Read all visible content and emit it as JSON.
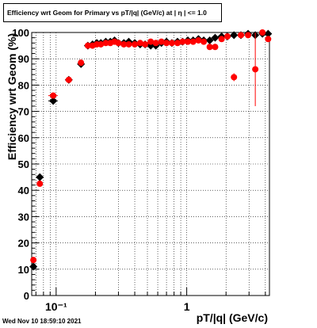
{
  "title": "Efficiency wrt Geom for Primary vs pT/|q| (GeV/c) at |  η | <= 1.0",
  "footer": {
    "datestamp": "Wed Nov 10 18:59:10 2021"
  },
  "colors": {
    "black_series": "#000000",
    "red_series": "#ff0000",
    "grid": "#000000"
  },
  "chart_data": {
    "type": "scatter",
    "title": "Efficiency wrt Geom for Primary vs pT/|q| (GeV/c) at |  η | <= 1.0",
    "xlabel": "pT/|q| (GeV/c)",
    "ylabel": "Efficiency wrt Geom (%)",
    "xscale": "log",
    "xlim": [
      0.065,
      4.3
    ],
    "ylim": [
      0,
      100
    ],
    "xticks_major": [
      {
        "value": 0.1,
        "label": "10⁻¹"
      },
      {
        "value": 1,
        "label": "1"
      }
    ],
    "yticks": [
      0,
      10,
      20,
      30,
      40,
      50,
      60,
      70,
      80,
      90,
      100
    ],
    "grid": true,
    "series": [
      {
        "color": "#000000",
        "marker": "diamond",
        "points": [
          {
            "x": 0.067,
            "y": 11,
            "xerr": 0.002
          },
          {
            "x": 0.075,
            "y": 45,
            "xerr": 0.002
          },
          {
            "x": 0.095,
            "y": 74,
            "xerr": 0.008
          },
          {
            "x": 0.125,
            "y": 82,
            "xerr": 0.008
          },
          {
            "x": 0.155,
            "y": 88,
            "xerr": 0.006
          },
          {
            "x": 0.175,
            "y": 95
          },
          {
            "x": 0.19,
            "y": 95.5
          },
          {
            "x": 0.205,
            "y": 96
          },
          {
            "x": 0.22,
            "y": 96
          },
          {
            "x": 0.24,
            "y": 96.5
          },
          {
            "x": 0.26,
            "y": 96.5
          },
          {
            "x": 0.28,
            "y": 97
          },
          {
            "x": 0.3,
            "y": 96
          },
          {
            "x": 0.33,
            "y": 96
          },
          {
            "x": 0.36,
            "y": 96.5
          },
          {
            "x": 0.4,
            "y": 96
          },
          {
            "x": 0.44,
            "y": 95.5
          },
          {
            "x": 0.48,
            "y": 95.5
          },
          {
            "x": 0.53,
            "y": 95
          },
          {
            "x": 0.58,
            "y": 95
          },
          {
            "x": 0.64,
            "y": 96
          },
          {
            "x": 0.7,
            "y": 96.5
          },
          {
            "x": 0.77,
            "y": 96
          },
          {
            "x": 0.85,
            "y": 96.5
          },
          {
            "x": 0.93,
            "y": 96.5
          },
          {
            "x": 1.02,
            "y": 97
          },
          {
            "x": 1.12,
            "y": 97
          },
          {
            "x": 1.23,
            "y": 97.5
          },
          {
            "x": 1.35,
            "y": 97
          },
          {
            "x": 1.5,
            "y": 97
          },
          {
            "x": 1.65,
            "y": 98
          },
          {
            "x": 1.85,
            "y": 98.5
          },
          {
            "x": 2.05,
            "y": 98.5
          },
          {
            "x": 2.3,
            "y": 99
          },
          {
            "x": 2.6,
            "y": 99
          },
          {
            "x": 2.95,
            "y": 99.5
          },
          {
            "x": 3.35,
            "y": 99
          },
          {
            "x": 3.8,
            "y": 99.5
          },
          {
            "x": 4.2,
            "y": 99.5
          }
        ]
      },
      {
        "color": "#ff0000",
        "marker": "circle",
        "points": [
          {
            "x": 0.067,
            "y": 13.5,
            "xerr": 0.002
          },
          {
            "x": 0.075,
            "y": 42.5,
            "xerr": 0.002
          },
          {
            "x": 0.095,
            "y": 76,
            "xerr": 0.008
          },
          {
            "x": 0.125,
            "y": 82,
            "xerr": 0.008
          },
          {
            "x": 0.155,
            "y": 88.5,
            "xerr": 0.006
          },
          {
            "x": 0.175,
            "y": 95
          },
          {
            "x": 0.19,
            "y": 95
          },
          {
            "x": 0.205,
            "y": 95.5
          },
          {
            "x": 0.22,
            "y": 95.5
          },
          {
            "x": 0.24,
            "y": 96
          },
          {
            "x": 0.26,
            "y": 96
          },
          {
            "x": 0.28,
            "y": 96.5
          },
          {
            "x": 0.3,
            "y": 96
          },
          {
            "x": 0.33,
            "y": 95.5
          },
          {
            "x": 0.36,
            "y": 95.5
          },
          {
            "x": 0.4,
            "y": 95.5
          },
          {
            "x": 0.44,
            "y": 96
          },
          {
            "x": 0.48,
            "y": 95.5
          },
          {
            "x": 0.53,
            "y": 96.5
          },
          {
            "x": 0.58,
            "y": 96
          },
          {
            "x": 0.64,
            "y": 96.5
          },
          {
            "x": 0.7,
            "y": 96
          },
          {
            "x": 0.77,
            "y": 96
          },
          {
            "x": 0.85,
            "y": 96
          },
          {
            "x": 0.93,
            "y": 96.5
          },
          {
            "x": 1.02,
            "y": 96.5
          },
          {
            "x": 1.12,
            "y": 96.5
          },
          {
            "x": 1.23,
            "y": 97
          },
          {
            "x": 1.35,
            "y": 96.5
          },
          {
            "x": 1.5,
            "y": 94.5
          },
          {
            "x": 1.65,
            "y": 94.5
          },
          {
            "x": 1.85,
            "y": 97.5
          },
          {
            "x": 2.05,
            "y": 98.5
          },
          {
            "x": 2.3,
            "y": 83,
            "yerr": 1.5
          },
          {
            "x": 2.6,
            "y": 99
          },
          {
            "x": 2.95,
            "y": 99
          },
          {
            "x": 3.35,
            "y": 86,
            "yerr": 14
          },
          {
            "x": 3.8,
            "y": 100
          },
          {
            "x": 4.2,
            "y": 97.5
          }
        ]
      }
    ]
  }
}
